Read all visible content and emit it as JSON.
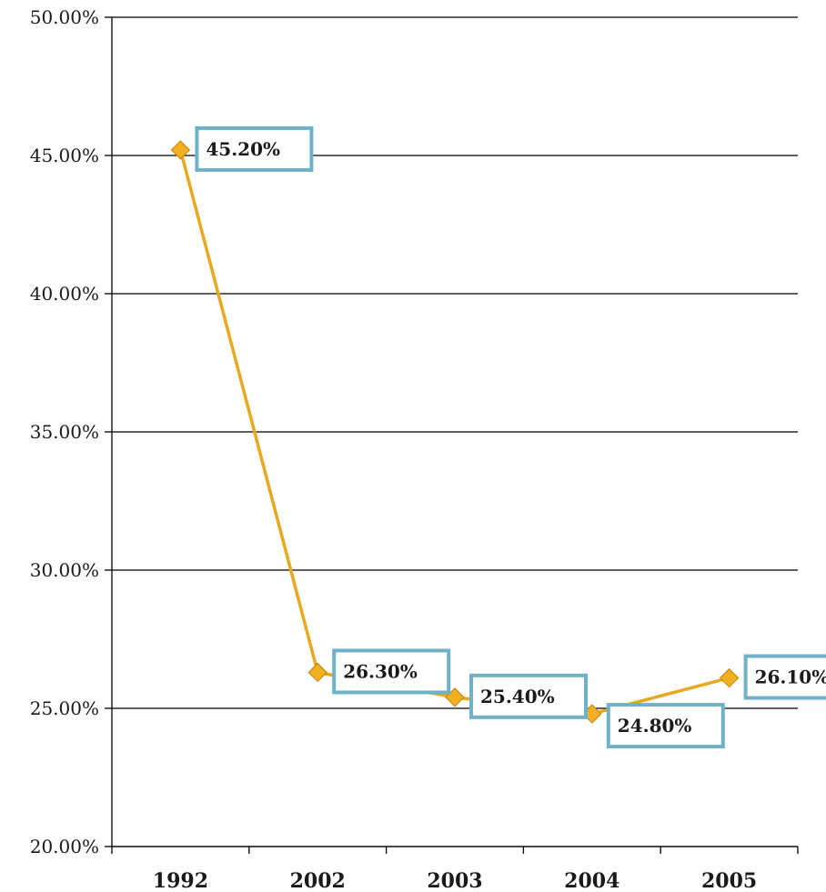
{
  "chart_data": {
    "type": "line",
    "categories": [
      "1992",
      "2002",
      "2003",
      "2004",
      "2005"
    ],
    "series": [
      {
        "values": [
          45.2,
          26.3,
          25.4,
          24.8,
          26.1
        ],
        "data_labels": [
          "45.20%",
          "26.30%",
          "25.40%",
          "24.80%",
          "26.10%"
        ]
      }
    ],
    "y_ticks": [
      "20.00%",
      "25.00%",
      "30.00%",
      "35.00%",
      "40.00%",
      "45.00%",
      "50.00%"
    ],
    "ylim": [
      20,
      50
    ],
    "grid": true,
    "title": "",
    "xlabel": "",
    "ylabel": "",
    "colors": {
      "line": "#e8a820",
      "marker": "#f0b020",
      "marker_stroke": "#c08010",
      "label_border": "#6fb2c8",
      "grid": "#000000"
    }
  }
}
